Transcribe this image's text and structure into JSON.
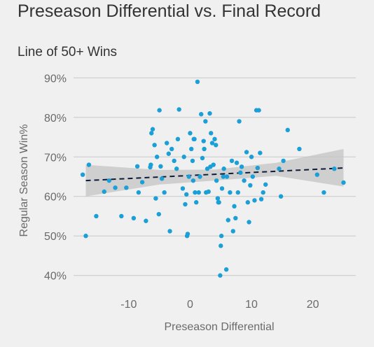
{
  "header": {
    "title": "Preseason Differential vs. Final Record",
    "subtitle": "Line of 50+ Wins"
  },
  "colors": {
    "background": "#f0f0f0",
    "grid": "#c8c8c8",
    "point": "#1a9fd6",
    "trend_line": "#0d1b3a",
    "confidence_band": "#c4c4c4"
  },
  "chart_data": {
    "type": "scatter",
    "title": "Preseason Differential vs. Final Record",
    "subtitle": "Line of 50+ Wins",
    "xlabel": "Preseason Differential",
    "ylabel": "Regular Season Win%",
    "xlim": [
      -19,
      27
    ],
    "ylim": [
      0.38,
      0.92
    ],
    "xticks": [
      -10,
      0,
      10,
      20
    ],
    "xtick_labels": [
      "-10",
      "0",
      "10",
      "20"
    ],
    "yticks": [
      0.4,
      0.5,
      0.6,
      0.7,
      0.8,
      0.9
    ],
    "ytick_labels": [
      "40%",
      "50%",
      "60%",
      "70%",
      "80%",
      "90%"
    ],
    "grid": "horizontal",
    "trend": {
      "x": [
        -17,
        25
      ],
      "y": [
        0.64,
        0.672
      ],
      "style": "dashed"
    },
    "band": {
      "x": [
        -17,
        -5,
        4,
        14,
        25
      ],
      "upper": [
        0.68,
        0.667,
        0.668,
        0.685,
        0.72
      ],
      "lower": [
        0.6,
        0.63,
        0.64,
        0.652,
        0.625
      ]
    },
    "points": [
      [
        -17.5,
        0.655
      ],
      [
        -16.5,
        0.68
      ],
      [
        -17,
        0.5
      ],
      [
        -15.3,
        0.55
      ],
      [
        -14,
        0.612
      ],
      [
        -13.2,
        0.64
      ],
      [
        -12.2,
        0.622
      ],
      [
        -11.2,
        0.55
      ],
      [
        -10.4,
        0.622
      ],
      [
        -9.2,
        0.545
      ],
      [
        -8.6,
        0.676
      ],
      [
        -8.4,
        0.61
      ],
      [
        -7.8,
        0.636
      ],
      [
        -7.2,
        0.538
      ],
      [
        -6.5,
        0.674
      ],
      [
        -6.4,
        0.68
      ],
      [
        -6.3,
        0.76
      ],
      [
        -6.1,
        0.77
      ],
      [
        -5.8,
        0.73
      ],
      [
        -5.6,
        0.595
      ],
      [
        -5.4,
        0.7
      ],
      [
        -5.1,
        0.555
      ],
      [
        -5.0,
        0.818
      ],
      [
        -4.8,
        0.676
      ],
      [
        -4.6,
        0.645
      ],
      [
        -4.2,
        0.61
      ],
      [
        -3.8,
        0.735
      ],
      [
        -3.5,
        0.708
      ],
      [
        -3.3,
        0.512
      ],
      [
        -3.0,
        0.72
      ],
      [
        -2.6,
        0.69
      ],
      [
        -2.2,
        0.67
      ],
      [
        -2.0,
        0.745
      ],
      [
        -1.8,
        0.82
      ],
      [
        -1.2,
        0.62
      ],
      [
        -1.0,
        0.7
      ],
      [
        -0.8,
        0.58
      ],
      [
        -0.6,
        0.605
      ],
      [
        -0.5,
        0.5
      ],
      [
        -0.4,
        0.505
      ],
      [
        -0.2,
        0.65
      ],
      [
        0,
        0.76
      ],
      [
        0.2,
        0.72
      ],
      [
        0.4,
        0.69
      ],
      [
        0.5,
        0.64
      ],
      [
        0.6,
        0.745
      ],
      [
        0.7,
        0.745
      ],
      [
        0.8,
        0.61
      ],
      [
        1.0,
        0.585
      ],
      [
        1.2,
        0.89
      ],
      [
        1.4,
        0.61
      ],
      [
        1.6,
        0.65
      ],
      [
        1.8,
        0.808
      ],
      [
        2.0,
        0.697
      ],
      [
        2.2,
        0.74
      ],
      [
        2.3,
        0.72
      ],
      [
        2.5,
        0.79
      ],
      [
        2.6,
        0.61
      ],
      [
        2.8,
        0.67
      ],
      [
        3.0,
        0.612
      ],
      [
        3.2,
        0.81
      ],
      [
        3.3,
        0.675
      ],
      [
        3.4,
        0.76
      ],
      [
        3.6,
        0.735
      ],
      [
        3.8,
        0.68
      ],
      [
        4.0,
        0.745
      ],
      [
        4.2,
        0.73
      ],
      [
        4.3,
        0.64
      ],
      [
        4.5,
        0.595
      ],
      [
        4.6,
        0.585
      ],
      [
        4.7,
        0.585
      ],
      [
        4.9,
        0.4
      ],
      [
        5.0,
        0.475
      ],
      [
        5.1,
        0.5
      ],
      [
        5.2,
        0.62
      ],
      [
        5.4,
        0.65
      ],
      [
        5.5,
        0.67
      ],
      [
        5.9,
        0.415
      ],
      [
        6.0,
        0.65
      ],
      [
        6.2,
        0.54
      ],
      [
        6.5,
        0.61
      ],
      [
        6.8,
        0.69
      ],
      [
        7.0,
        0.512
      ],
      [
        7.2,
        0.575
      ],
      [
        7.4,
        0.545
      ],
      [
        7.6,
        0.685
      ],
      [
        7.8,
        0.61
      ],
      [
        8.0,
        0.79
      ],
      [
        8.2,
        0.66
      ],
      [
        8.4,
        0.675
      ],
      [
        8.8,
        0.64
      ],
      [
        9.2,
        0.712
      ],
      [
        9.4,
        0.585
      ],
      [
        9.6,
        0.535
      ],
      [
        9.8,
        0.628
      ],
      [
        10.0,
        0.7
      ],
      [
        10.2,
        0.65
      ],
      [
        10.5,
        0.59
      ],
      [
        10.8,
        0.818
      ],
      [
        11.0,
        0.672
      ],
      [
        11.2,
        0.818
      ],
      [
        11.4,
        0.71
      ],
      [
        11.6,
        0.593
      ],
      [
        11.9,
        0.61
      ],
      [
        12.3,
        0.63
      ],
      [
        14.5,
        0.67
      ],
      [
        14.8,
        0.6
      ],
      [
        15.2,
        0.69
      ],
      [
        15.9,
        0.768
      ],
      [
        17.8,
        0.72
      ],
      [
        20.7,
        0.655
      ],
      [
        21.8,
        0.61
      ],
      [
        23.5,
        0.67
      ],
      [
        25.0,
        0.635
      ]
    ]
  }
}
